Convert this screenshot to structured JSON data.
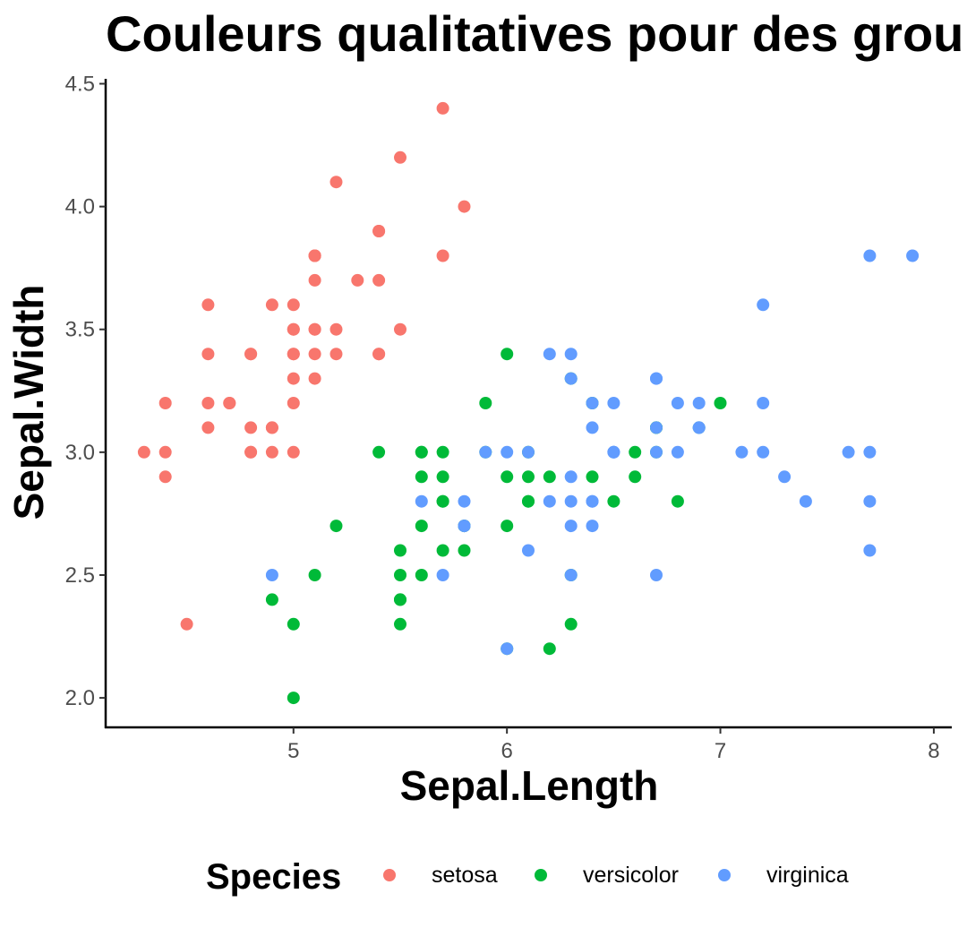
{
  "chart_data": {
    "type": "scatter",
    "title": "Couleurs qualitatives pour des groupes",
    "xlabel": "Sepal.Length",
    "ylabel": "Sepal.Width",
    "xlim": [
      4.12,
      8.08
    ],
    "ylim": [
      1.88,
      4.52
    ],
    "x_ticks": [
      5,
      6,
      7,
      8
    ],
    "y_ticks": [
      2.0,
      2.5,
      3.0,
      3.5,
      4.0,
      4.5
    ],
    "x_tick_labels": [
      "5",
      "6",
      "7",
      "8"
    ],
    "y_tick_labels": [
      "2.0",
      "2.5",
      "3.0",
      "3.5",
      "4.0",
      "4.5"
    ],
    "grid": false,
    "legend": {
      "title": "Species",
      "position": "bottom"
    },
    "series": [
      {
        "name": "setosa",
        "color": "#F8766D",
        "points": [
          [
            5.1,
            3.5
          ],
          [
            4.9,
            3.0
          ],
          [
            4.7,
            3.2
          ],
          [
            4.6,
            3.1
          ],
          [
            5.0,
            3.6
          ],
          [
            5.4,
            3.9
          ],
          [
            4.6,
            3.4
          ],
          [
            5.0,
            3.4
          ],
          [
            4.4,
            2.9
          ],
          [
            4.9,
            3.1
          ],
          [
            5.4,
            3.7
          ],
          [
            4.8,
            3.4
          ],
          [
            4.8,
            3.0
          ],
          [
            4.3,
            3.0
          ],
          [
            5.8,
            4.0
          ],
          [
            5.7,
            4.4
          ],
          [
            5.4,
            3.9
          ],
          [
            5.1,
            3.5
          ],
          [
            5.7,
            3.8
          ],
          [
            5.1,
            3.8
          ],
          [
            5.4,
            3.4
          ],
          [
            5.1,
            3.7
          ],
          [
            4.6,
            3.6
          ],
          [
            5.1,
            3.3
          ],
          [
            4.8,
            3.4
          ],
          [
            5.0,
            3.0
          ],
          [
            5.0,
            3.4
          ],
          [
            5.2,
            3.5
          ],
          [
            5.2,
            3.4
          ],
          [
            4.7,
            3.2
          ],
          [
            4.8,
            3.1
          ],
          [
            5.4,
            3.4
          ],
          [
            5.2,
            4.1
          ],
          [
            5.5,
            4.2
          ],
          [
            4.9,
            3.1
          ],
          [
            5.0,
            3.2
          ],
          [
            5.5,
            3.5
          ],
          [
            4.9,
            3.6
          ],
          [
            4.4,
            3.0
          ],
          [
            5.1,
            3.4
          ],
          [
            5.0,
            3.5
          ],
          [
            4.5,
            2.3
          ],
          [
            4.4,
            3.2
          ],
          [
            5.0,
            3.5
          ],
          [
            5.1,
            3.8
          ],
          [
            4.8,
            3.0
          ],
          [
            5.1,
            3.8
          ],
          [
            4.6,
            3.2
          ],
          [
            5.3,
            3.7
          ],
          [
            5.0,
            3.3
          ]
        ]
      },
      {
        "name": "versicolor",
        "color": "#00BA38",
        "points": [
          [
            7.0,
            3.2
          ],
          [
            6.4,
            3.2
          ],
          [
            6.9,
            3.1
          ],
          [
            5.5,
            2.3
          ],
          [
            6.5,
            2.8
          ],
          [
            5.7,
            2.8
          ],
          [
            6.3,
            3.3
          ],
          [
            4.9,
            2.4
          ],
          [
            6.6,
            2.9
          ],
          [
            5.2,
            2.7
          ],
          [
            5.0,
            2.0
          ],
          [
            5.9,
            3.0
          ],
          [
            6.0,
            2.2
          ],
          [
            6.1,
            2.9
          ],
          [
            5.6,
            2.9
          ],
          [
            6.7,
            3.1
          ],
          [
            5.6,
            3.0
          ],
          [
            5.8,
            2.7
          ],
          [
            6.2,
            2.2
          ],
          [
            5.6,
            2.5
          ],
          [
            5.9,
            3.2
          ],
          [
            6.1,
            2.8
          ],
          [
            6.3,
            2.5
          ],
          [
            6.1,
            2.8
          ],
          [
            6.4,
            2.9
          ],
          [
            6.6,
            3.0
          ],
          [
            6.8,
            2.8
          ],
          [
            6.7,
            3.0
          ],
          [
            6.0,
            2.9
          ],
          [
            5.7,
            2.6
          ],
          [
            5.5,
            2.4
          ],
          [
            5.5,
            2.4
          ],
          [
            5.8,
            2.7
          ],
          [
            6.0,
            2.7
          ],
          [
            5.4,
            3.0
          ],
          [
            6.0,
            3.4
          ],
          [
            6.7,
            3.1
          ],
          [
            6.3,
            2.3
          ],
          [
            5.6,
            3.0
          ],
          [
            5.5,
            2.5
          ],
          [
            5.5,
            2.6
          ],
          [
            6.1,
            3.0
          ],
          [
            5.8,
            2.6
          ],
          [
            5.0,
            2.3
          ],
          [
            5.6,
            2.7
          ],
          [
            5.7,
            3.0
          ],
          [
            5.7,
            2.9
          ],
          [
            6.2,
            2.9
          ],
          [
            5.1,
            2.5
          ],
          [
            5.7,
            2.8
          ]
        ]
      },
      {
        "name": "virginica",
        "color": "#619CFF",
        "points": [
          [
            6.3,
            3.3
          ],
          [
            5.8,
            2.7
          ],
          [
            7.1,
            3.0
          ],
          [
            6.3,
            2.9
          ],
          [
            6.5,
            3.0
          ],
          [
            7.6,
            3.0
          ],
          [
            4.9,
            2.5
          ],
          [
            7.3,
            2.9
          ],
          [
            6.7,
            2.5
          ],
          [
            7.2,
            3.6
          ],
          [
            6.5,
            3.2
          ],
          [
            6.4,
            2.7
          ],
          [
            6.8,
            3.0
          ],
          [
            5.7,
            2.5
          ],
          [
            5.8,
            2.8
          ],
          [
            6.4,
            3.2
          ],
          [
            6.5,
            3.0
          ],
          [
            7.7,
            3.8
          ],
          [
            7.7,
            2.6
          ],
          [
            6.0,
            2.2
          ],
          [
            6.9,
            3.2
          ],
          [
            5.6,
            2.8
          ],
          [
            7.7,
            2.8
          ],
          [
            6.3,
            2.7
          ],
          [
            6.7,
            3.3
          ],
          [
            7.2,
            3.2
          ],
          [
            6.2,
            2.8
          ],
          [
            6.1,
            3.0
          ],
          [
            6.4,
            2.8
          ],
          [
            7.2,
            3.0
          ],
          [
            7.4,
            2.8
          ],
          [
            7.9,
            3.8
          ],
          [
            6.4,
            2.8
          ],
          [
            6.3,
            2.8
          ],
          [
            6.1,
            2.6
          ],
          [
            7.7,
            3.0
          ],
          [
            6.3,
            3.4
          ],
          [
            6.4,
            3.1
          ],
          [
            6.0,
            3.0
          ],
          [
            6.9,
            3.1
          ],
          [
            6.7,
            3.1
          ],
          [
            6.9,
            3.1
          ],
          [
            5.8,
            2.7
          ],
          [
            6.8,
            3.2
          ],
          [
            6.7,
            3.3
          ],
          [
            6.7,
            3.0
          ],
          [
            6.3,
            2.5
          ],
          [
            6.5,
            3.0
          ],
          [
            6.2,
            3.4
          ],
          [
            5.9,
            3.0
          ]
        ]
      }
    ]
  }
}
